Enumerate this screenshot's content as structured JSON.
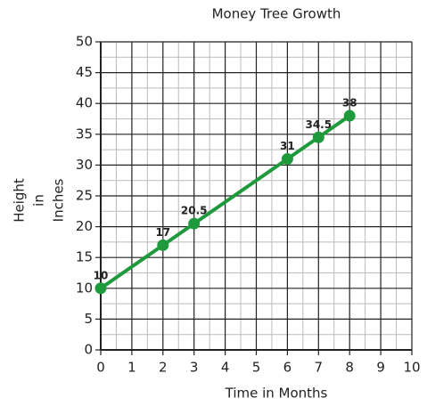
{
  "chart_data": {
    "type": "line",
    "title": "Money Tree Growth",
    "xlabel": "Time in Months",
    "ylabel": [
      "Height",
      "in",
      "Inches"
    ],
    "x": [
      0,
      2,
      3,
      6,
      7,
      8
    ],
    "series": [
      {
        "name": "Height",
        "color": "#1e9a3c",
        "values": [
          10,
          17,
          20.5,
          31,
          34.5,
          38
        ]
      }
    ],
    "xlim": [
      0,
      10
    ],
    "xticks": [
      0,
      1,
      2,
      3,
      4,
      5,
      6,
      7,
      8,
      9,
      10
    ],
    "ylim": [
      0,
      50
    ],
    "yticks": [
      0,
      5,
      10,
      15,
      20,
      25,
      30,
      35,
      40,
      45,
      50
    ],
    "grid": true,
    "minor_grid": true
  }
}
